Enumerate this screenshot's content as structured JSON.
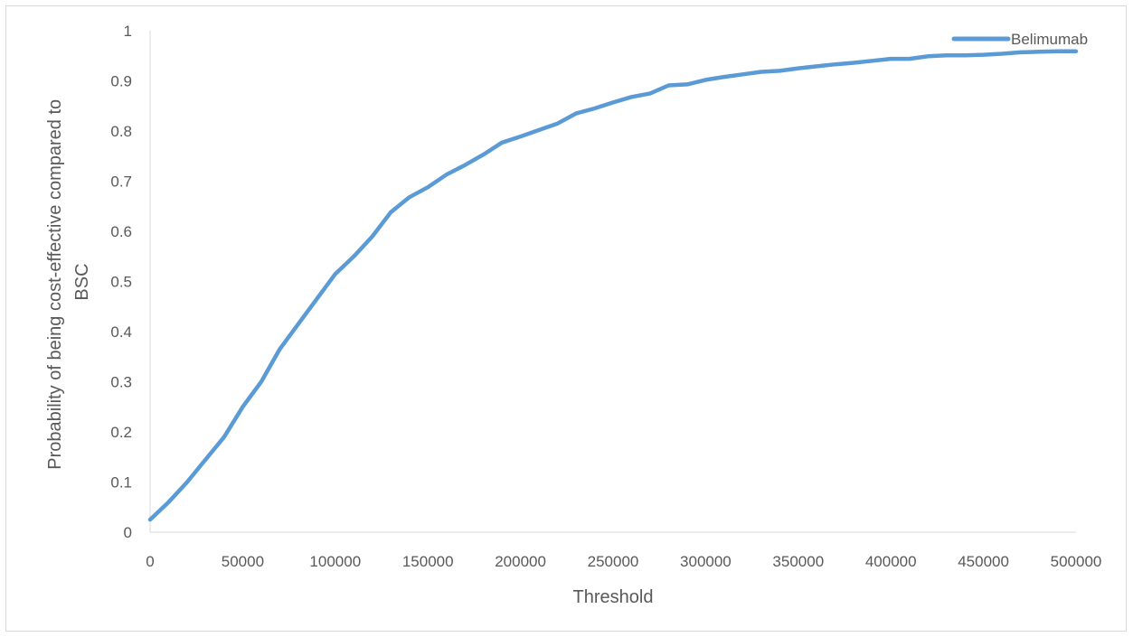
{
  "chart_data": {
    "type": "line",
    "title": "",
    "xlabel": "Threshold",
    "ylabel_lines": [
      "Probability of being cost-effective compared to",
      "BSC"
    ],
    "xlim": [
      0,
      500000
    ],
    "ylim": [
      0,
      1
    ],
    "x_ticks": [
      "0",
      "50000",
      "100000",
      "150000",
      "200000",
      "250000",
      "300000",
      "350000",
      "400000",
      "450000",
      "500000"
    ],
    "y_ticks": [
      "0",
      "0.1",
      "0.2",
      "0.3",
      "0.4",
      "0.5",
      "0.6",
      "0.7",
      "0.8",
      "0.9",
      "1"
    ],
    "grid": false,
    "legend": {
      "position": "top-right"
    },
    "series": [
      {
        "name": "Belimumab",
        "color": "#5b9bd5",
        "x": [
          0,
          10000,
          20000,
          30000,
          40000,
          50000,
          60000,
          70000,
          80000,
          90000,
          100000,
          110000,
          120000,
          130000,
          140000,
          150000,
          160000,
          170000,
          180000,
          190000,
          200000,
          210000,
          220000,
          230000,
          240000,
          250000,
          260000,
          270000,
          280000,
          290000,
          300000,
          310000,
          320000,
          330000,
          340000,
          350000,
          360000,
          370000,
          380000,
          390000,
          400000,
          410000,
          420000,
          430000,
          440000,
          450000,
          460000,
          470000,
          480000,
          490000,
          500000
        ],
        "y": [
          0.025,
          0.06,
          0.1,
          0.145,
          0.19,
          0.25,
          0.3,
          0.365,
          0.415,
          0.465,
          0.515,
          0.55,
          0.59,
          0.638,
          0.668,
          0.688,
          0.713,
          0.732,
          0.753,
          0.777,
          0.789,
          0.802,
          0.815,
          0.835,
          0.845,
          0.857,
          0.868,
          0.875,
          0.891,
          0.893,
          0.902,
          0.908,
          0.913,
          0.918,
          0.92,
          0.925,
          0.929,
          0.933,
          0.936,
          0.94,
          0.944,
          0.944,
          0.949,
          0.951,
          0.951,
          0.952,
          0.954,
          0.957,
          0.958,
          0.959,
          0.959
        ]
      }
    ]
  }
}
